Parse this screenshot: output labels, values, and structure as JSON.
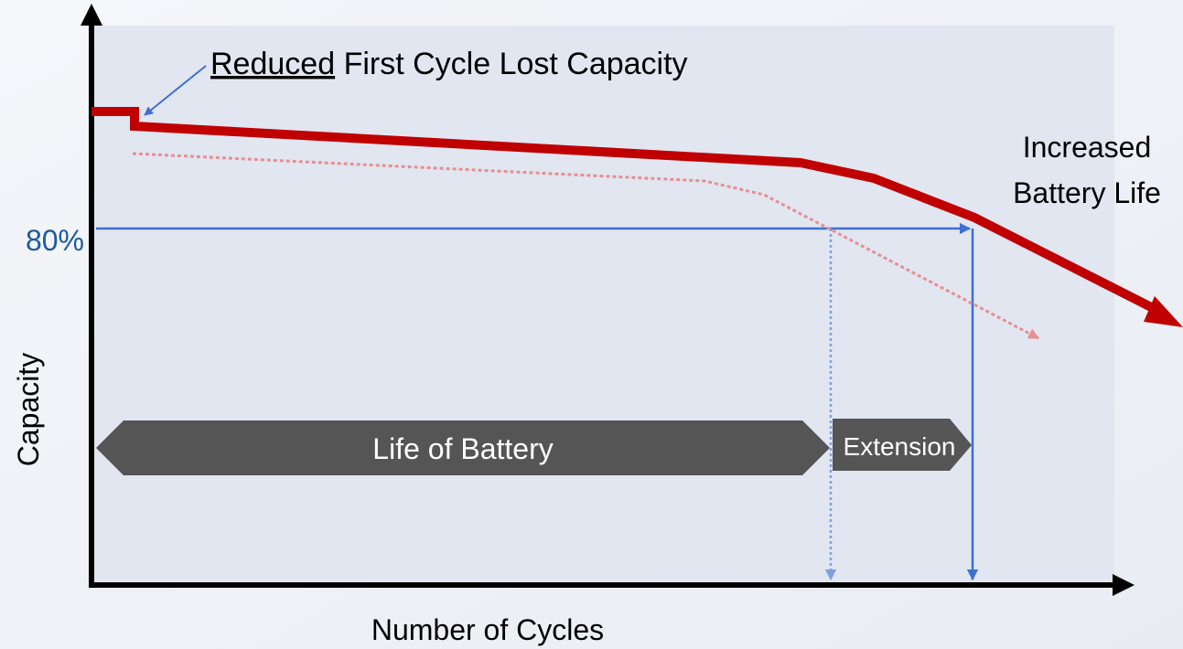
{
  "annotation": {
    "emphasis": "Reduced",
    "text": "First Cycle Lost Capacity"
  },
  "outcome": [
    "Increased",
    "Battery Life"
  ],
  "threshold_label": "80%",
  "y_axis_label": "Capacity",
  "x_axis_label": "Number of Cycles",
  "spans": {
    "life": "Life of Battery",
    "extension": "Extension"
  }
}
